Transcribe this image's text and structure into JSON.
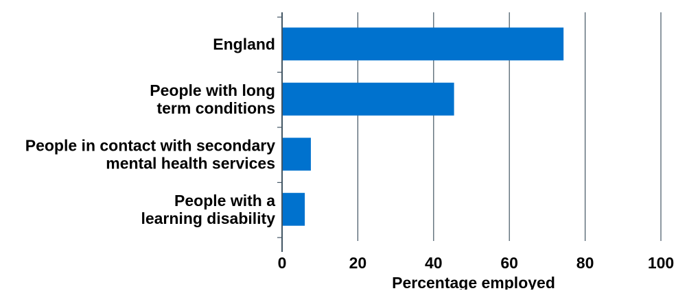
{
  "chart_data": {
    "type": "bar",
    "orientation": "horizontal",
    "categories": [
      [
        "England"
      ],
      [
        "People with long",
        "term conditions"
      ],
      [
        "People in contact with secondary",
        "mental health services"
      ],
      [
        "People with a",
        "learning disability"
      ]
    ],
    "values": [
      74.3,
      45.4,
      7.6,
      6.0
    ],
    "xlabel": "Percentage employed",
    "xlim": [
      0,
      100
    ],
    "xticks": [
      0,
      20,
      40,
      60,
      80,
      100
    ],
    "grid": "vertical",
    "legend": "none",
    "bar_color": "#0072ce",
    "grid_color": "#425563"
  }
}
